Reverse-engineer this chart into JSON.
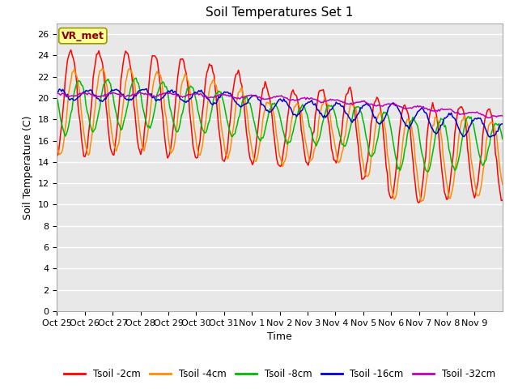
{
  "title": "Soil Temperatures Set 1",
  "xlabel": "Time",
  "ylabel": "Soil Temperature (C)",
  "xtick_labels": [
    "Oct 25",
    "Oct 26",
    "Oct 27",
    "Oct 28",
    "Oct 29",
    "Oct 30",
    "Oct 31",
    "Nov 1",
    "Nov 2",
    "Nov 3",
    "Nov 4",
    "Nov 5",
    "Nov 6",
    "Nov 7",
    "Nov 8",
    "Nov 9"
  ],
  "ytick_values": [
    0,
    2,
    4,
    6,
    8,
    10,
    12,
    14,
    16,
    18,
    20,
    22,
    24,
    26
  ],
  "ylim": [
    0,
    27
  ],
  "annotation_text": "VR_met",
  "annotation_color": "#8B0000",
  "annotation_bg": "#FFFF99",
  "line_colors": {
    "Tsoil -2cm": "#FF0000",
    "Tsoil -4cm": "#FF8C00",
    "Tsoil -8cm": "#00BB00",
    "Tsoil -16cm": "#0000CC",
    "Tsoil -32cm": "#BB00BB"
  },
  "background_color": "#E8E8E8",
  "grid_color": "#FFFFFF",
  "title_fontsize": 11,
  "axis_fontsize": 9,
  "tick_fontsize": 8
}
